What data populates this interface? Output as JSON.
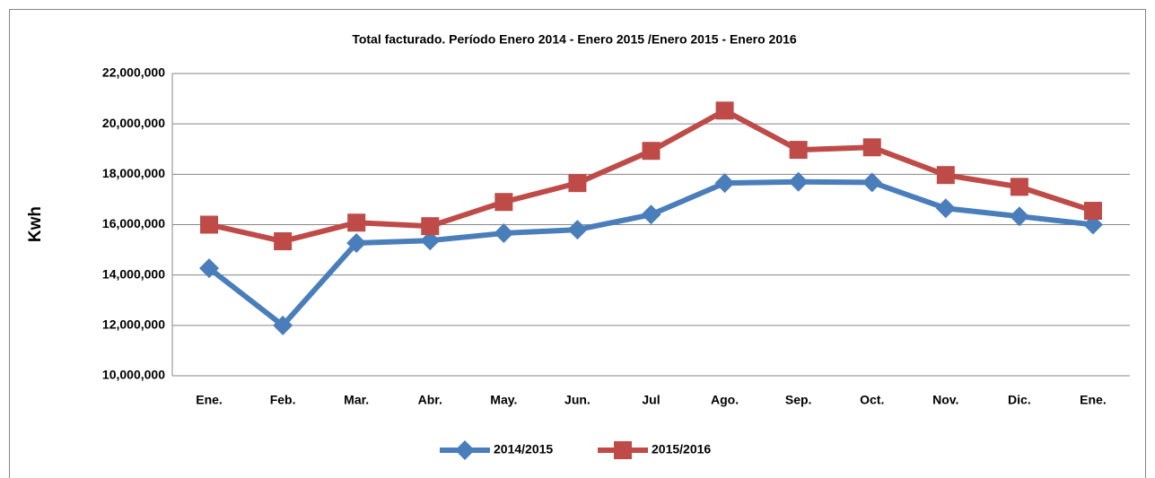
{
  "chart_data": {
    "type": "line",
    "title": "Total facturado. Período Enero 2014 - Enero 2015 /Enero 2015 - Enero 2016",
    "y_label": "Kwh",
    "categories": [
      "Ene.",
      "Feb.",
      "Mar.",
      "Abr.",
      "May.",
      "Jun.",
      "Jul",
      "Ago.",
      "Sep.",
      "Oct.",
      "Nov.",
      "Dic.",
      "Ene."
    ],
    "series": [
      {
        "name": "2014/2015",
        "color": "#4a7ebb",
        "marker": "diamond",
        "values": [
          14270000,
          12000000,
          15270000,
          15370000,
          15660000,
          15800000,
          16400000,
          17650000,
          17700000,
          17680000,
          16650000,
          16330000,
          16000000
        ]
      },
      {
        "name": "2015/2016",
        "color": "#be4b48",
        "marker": "square",
        "values": [
          16000000,
          15340000,
          16080000,
          15940000,
          16900000,
          17650000,
          18930000,
          20530000,
          18970000,
          19070000,
          17970000,
          17500000,
          16550000
        ]
      }
    ],
    "ylim": [
      10000000,
      22000000
    ],
    "yticks": [
      {
        "value": 10000000,
        "label": "10,000,000"
      },
      {
        "value": 12000000,
        "label": "12,000,000"
      },
      {
        "value": 14000000,
        "label": "14,000,000"
      },
      {
        "value": 16000000,
        "label": "16,000,000"
      },
      {
        "value": 18000000,
        "label": "18,000,000"
      },
      {
        "value": 20000000,
        "label": "20,000,000"
      },
      {
        "value": 22000000,
        "label": "22,000,000"
      }
    ],
    "grid": true,
    "legend": "bottom"
  }
}
